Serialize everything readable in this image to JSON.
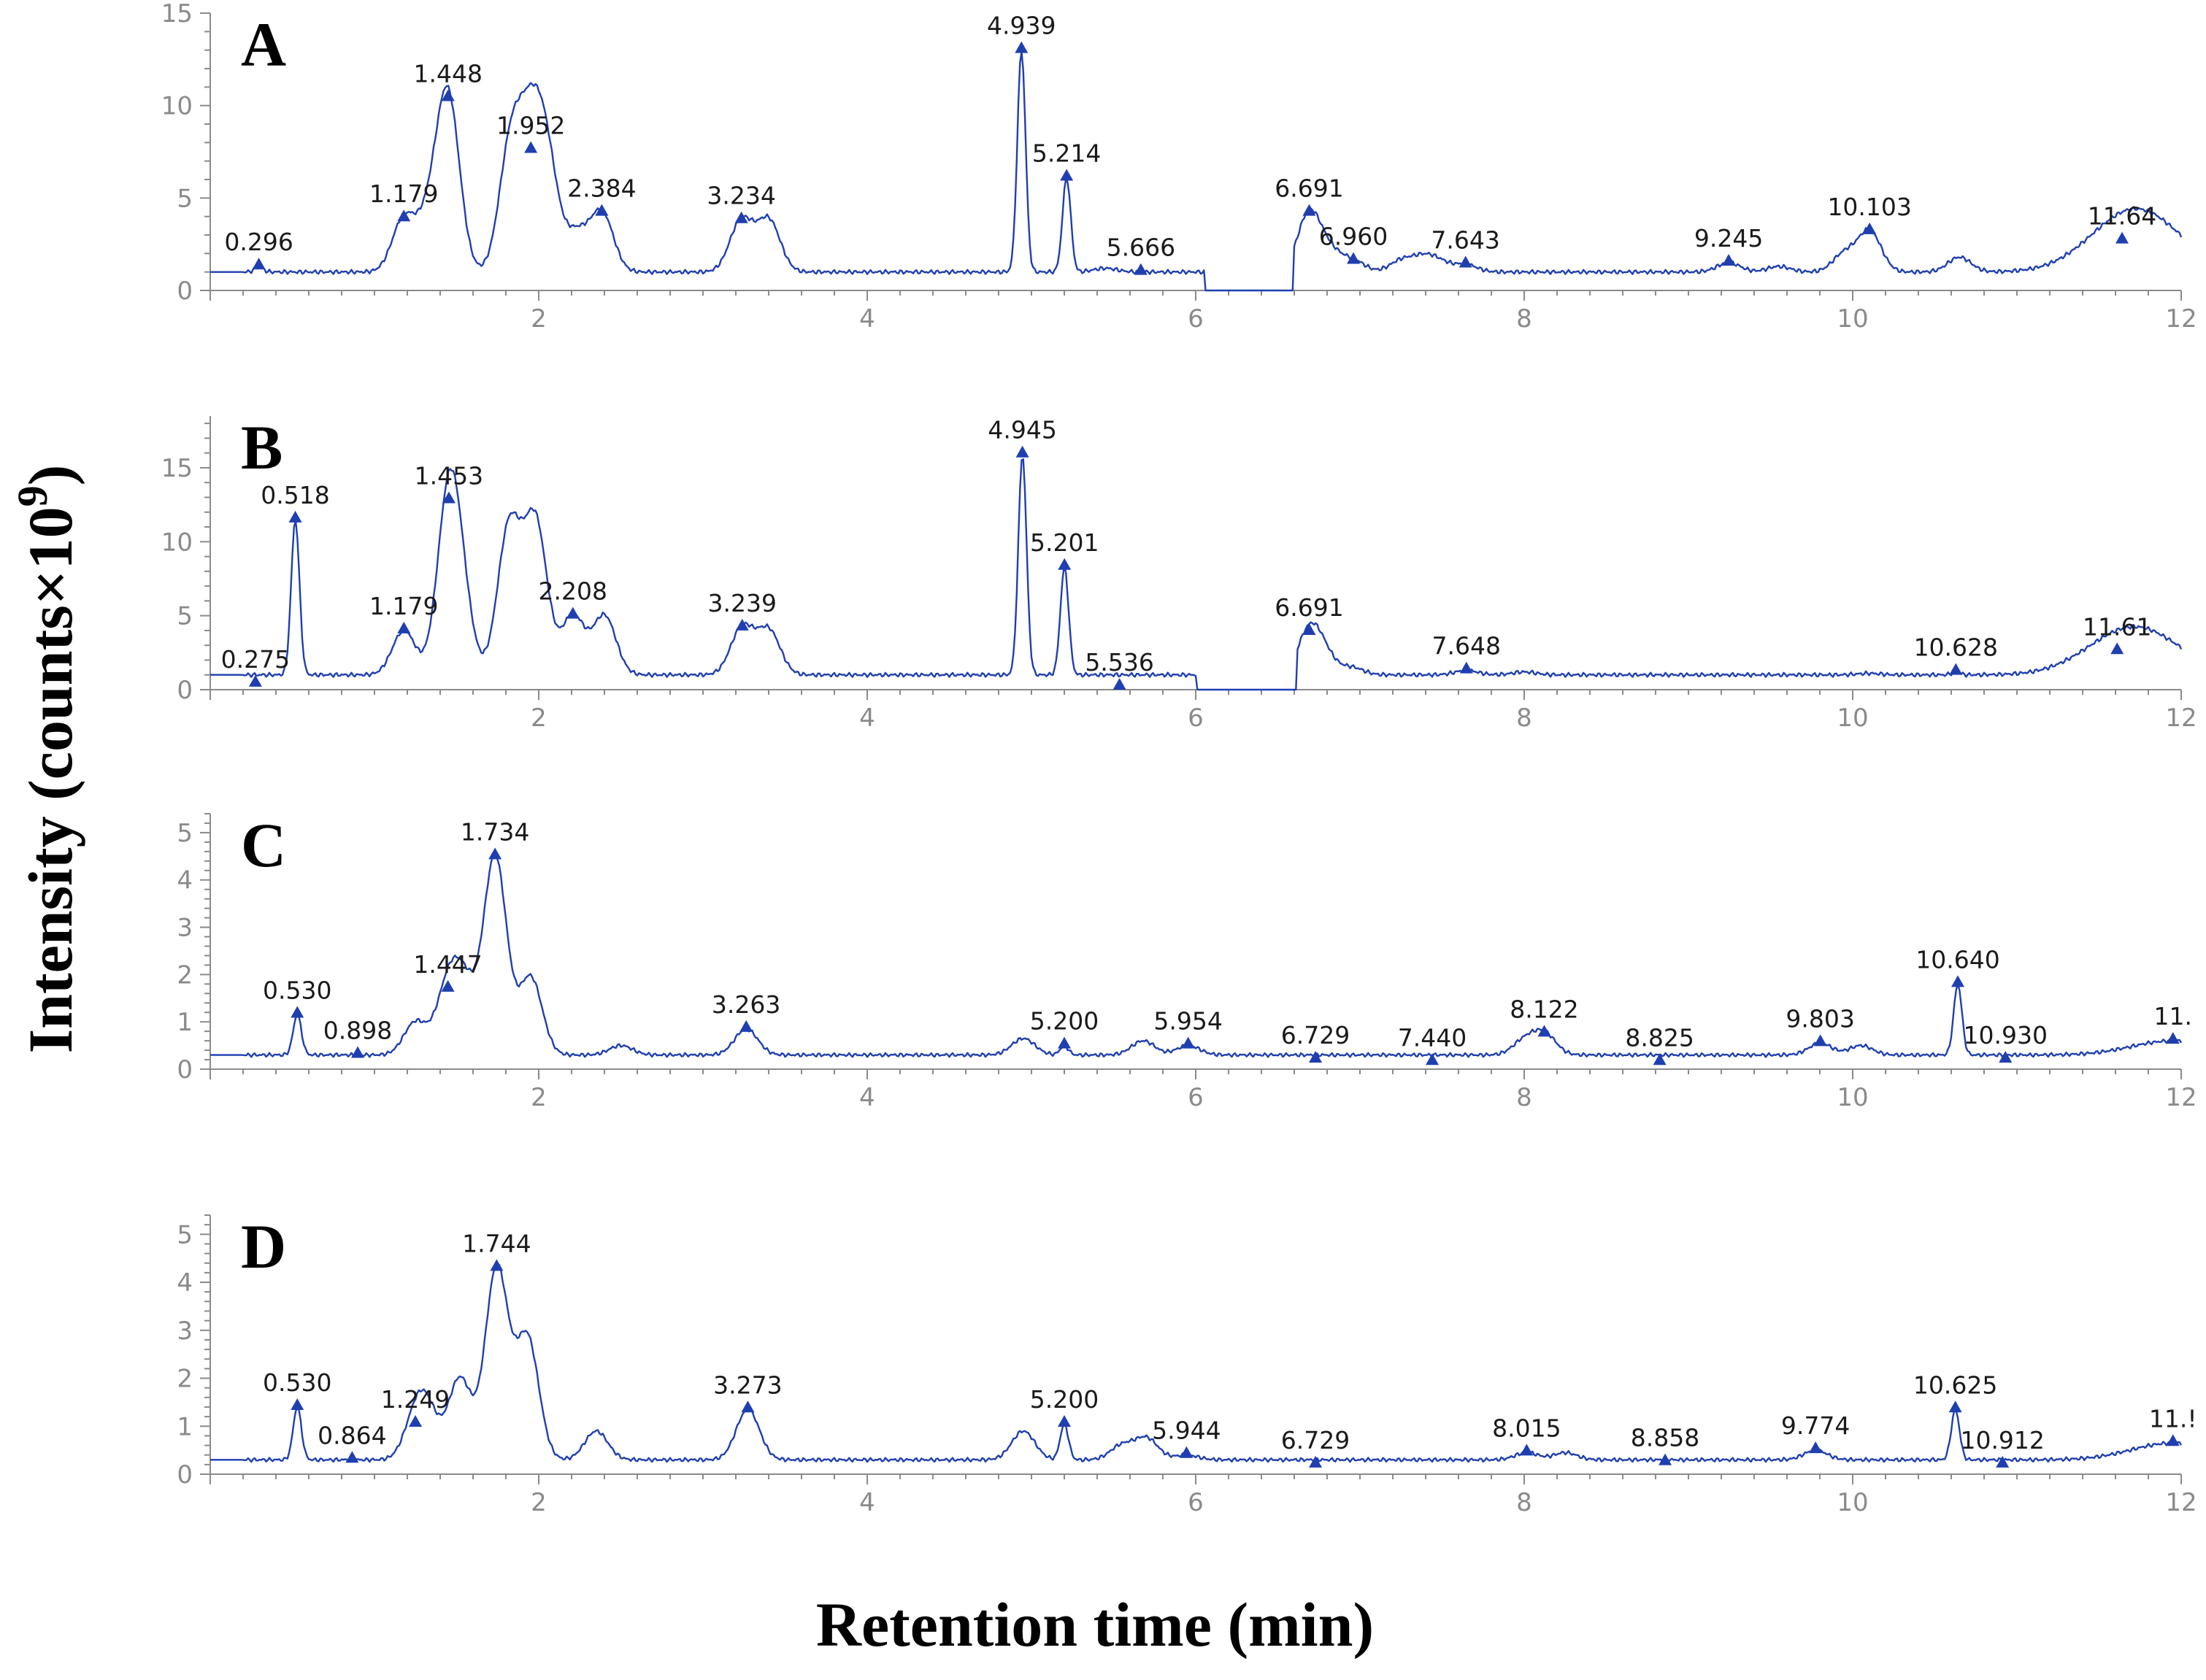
{
  "figure": {
    "ylabel": "Intensity (counts×10",
    "ylabel_exp": "9",
    "ylabel_close": ")",
    "xlabel": "Retention time (min)",
    "trace_color": "#1f3fb0"
  },
  "chart_data": [
    {
      "type": "line",
      "panel": "A",
      "xlim": [
        0,
        12
      ],
      "ylim": [
        0,
        15
      ],
      "xticks": [
        2,
        4,
        6,
        8,
        10,
        12
      ],
      "yticks": [
        0,
        5,
        10,
        15
      ],
      "baseline": 1.0,
      "peaks": [
        {
          "label": "0.296",
          "x": 0.296,
          "y": 1.3
        },
        {
          "label": "1.179",
          "x": 1.179,
          "y": 3.9
        },
        {
          "label": "1.448",
          "x": 1.448,
          "y": 10.4
        },
        {
          "label": "1.952",
          "x": 1.952,
          "y": 7.6
        },
        {
          "label": "2.384",
          "x": 2.384,
          "y": 4.2
        },
        {
          "label": "3.234",
          "x": 3.234,
          "y": 3.8
        },
        {
          "label": "4.939",
          "x": 4.939,
          "y": 13.0
        },
        {
          "label": "5.214",
          "x": 5.214,
          "y": 6.1
        },
        {
          "label": "5.666",
          "x": 5.666,
          "y": 1.0
        },
        {
          "label": "6.691",
          "x": 6.691,
          "y": 4.2
        },
        {
          "label": "6.960",
          "x": 6.96,
          "y": 1.6
        },
        {
          "label": "7.643",
          "x": 7.643,
          "y": 1.4
        },
        {
          "label": "9.245",
          "x": 9.245,
          "y": 1.5
        },
        {
          "label": "10.103",
          "x": 10.103,
          "y": 3.2
        },
        {
          "label": "11.64",
          "x": 11.64,
          "y": 2.7
        }
      ],
      "minor_peaks": [
        [
          1.33,
          3.5
        ],
        [
          1.83,
          7.8
        ],
        [
          2.05,
          6.5
        ],
        [
          2.23,
          3.0
        ],
        [
          3.4,
          3.8
        ],
        [
          5.45,
          1.2
        ],
        [
          6.82,
          2.0
        ],
        [
          7.25,
          1.6
        ],
        [
          7.38,
          1.7
        ],
        [
          7.48,
          1.5
        ],
        [
          9.55,
          1.3
        ],
        [
          9.95,
          2.0
        ],
        [
          10.65,
          1.8
        ],
        [
          11.8,
          2.9
        ]
      ],
      "dip": [
        6.05,
        6.6,
        0.0
      ]
    },
    {
      "type": "line",
      "panel": "B",
      "xlim": [
        0,
        12
      ],
      "ylim": [
        0,
        18.5
      ],
      "xticks": [
        2,
        4,
        6,
        8,
        10,
        12
      ],
      "yticks": [
        0,
        5,
        10,
        15
      ],
      "baseline": 1.0,
      "peaks": [
        {
          "label": "0.275",
          "x": 0.275,
          "y": 0.4
        },
        {
          "label": "0.518",
          "x": 0.518,
          "y": 11.5
        },
        {
          "label": "1.179",
          "x": 1.179,
          "y": 4.0
        },
        {
          "label": "1.453",
          "x": 1.453,
          "y": 12.8
        },
        {
          "label": "2.208",
          "x": 2.208,
          "y": 5.0
        },
        {
          "label": "3.239",
          "x": 3.239,
          "y": 4.2
        },
        {
          "label": "4.945",
          "x": 4.945,
          "y": 15.9
        },
        {
          "label": "5.201",
          "x": 5.201,
          "y": 8.3
        },
        {
          "label": "5.536",
          "x": 5.536,
          "y": 0.2
        },
        {
          "label": "6.691",
          "x": 6.691,
          "y": 3.9
        },
        {
          "label": "7.648",
          "x": 7.648,
          "y": 1.3
        },
        {
          "label": "10.628",
          "x": 10.628,
          "y": 1.2
        },
        {
          "label": "11.61",
          "x": 11.61,
          "y": 2.6
        }
      ],
      "minor_peaks": [
        [
          1.53,
          4.6
        ],
        [
          1.82,
          11.0
        ],
        [
          1.98,
          11.3
        ],
        [
          2.4,
          5.0
        ],
        [
          3.4,
          4.0
        ],
        [
          6.78,
          2.2
        ],
        [
          6.95,
          1.5
        ],
        [
          8.0,
          1.2
        ],
        [
          10.1,
          1.1
        ],
        [
          11.8,
          2.9
        ]
      ],
      "dip": [
        6.0,
        6.62,
        0.0
      ]
    },
    {
      "type": "line",
      "panel": "C",
      "xlim": [
        0,
        12
      ],
      "ylim": [
        0,
        5.4
      ],
      "xticks": [
        2,
        4,
        6,
        8,
        10,
        12
      ],
      "yticks": [
        0,
        1,
        2,
        3,
        4,
        5
      ],
      "baseline": 0.3,
      "peaks": [
        {
          "label": "0.530",
          "x": 0.53,
          "y": 1.15
        },
        {
          "label": "0.898",
          "x": 0.898,
          "y": 0.3
        },
        {
          "label": "1.447",
          "x": 1.447,
          "y": 1.7
        },
        {
          "label": "1.734",
          "x": 1.734,
          "y": 4.5
        },
        {
          "label": "3.263",
          "x": 3.263,
          "y": 0.85
        },
        {
          "label": "5.200",
          "x": 5.2,
          "y": 0.5
        },
        {
          "label": "5.954",
          "x": 5.954,
          "y": 0.5
        },
        {
          "label": "6.729",
          "x": 6.729,
          "y": 0.2
        },
        {
          "label": "7.440",
          "x": 7.44,
          "y": 0.15
        },
        {
          "label": "8.122",
          "x": 8.122,
          "y": 0.75
        },
        {
          "label": "8.825",
          "x": 8.825,
          "y": 0.15
        },
        {
          "label": "9.803",
          "x": 9.803,
          "y": 0.55
        },
        {
          "label": "10.640",
          "x": 10.64,
          "y": 1.8
        },
        {
          "label": "10.930",
          "x": 10.93,
          "y": 0.2
        },
        {
          "label": "11.",
          "x": 11.95,
          "y": 0.6
        }
      ],
      "minor_peaks": [
        [
          1.25,
          1.0
        ],
        [
          1.55,
          1.6
        ],
        [
          1.95,
          1.95
        ],
        [
          2.5,
          0.5
        ],
        [
          4.95,
          0.65
        ],
        [
          5.68,
          0.6
        ],
        [
          8.0,
          0.6
        ],
        [
          10.05,
          0.5
        ]
      ],
      "dip": null
    },
    {
      "type": "line",
      "panel": "D",
      "xlim": [
        0,
        12
      ],
      "ylim": [
        0,
        5.4
      ],
      "xticks": [
        2,
        4,
        6,
        8,
        10,
        12
      ],
      "yticks": [
        0,
        1,
        2,
        3,
        4,
        5
      ],
      "baseline": 0.3,
      "peaks": [
        {
          "label": "0.530",
          "x": 0.53,
          "y": 1.4
        },
        {
          "label": "0.864",
          "x": 0.864,
          "y": 0.3
        },
        {
          "label": "1.249",
          "x": 1.249,
          "y": 1.05
        },
        {
          "label": "1.744",
          "x": 1.744,
          "y": 4.3
        },
        {
          "label": "3.273",
          "x": 3.273,
          "y": 1.35
        },
        {
          "label": "5.200",
          "x": 5.2,
          "y": 1.05
        },
        {
          "label": "5.944",
          "x": 5.944,
          "y": 0.4
        },
        {
          "label": "6.729",
          "x": 6.729,
          "y": 0.2
        },
        {
          "label": "8.015",
          "x": 8.015,
          "y": 0.45
        },
        {
          "label": "8.858",
          "x": 8.858,
          "y": 0.25
        },
        {
          "label": "9.774",
          "x": 9.774,
          "y": 0.5
        },
        {
          "label": "10.625",
          "x": 10.625,
          "y": 1.35
        },
        {
          "label": "10.912",
          "x": 10.912,
          "y": 0.2
        },
        {
          "label": "11.!",
          "x": 11.95,
          "y": 0.65
        }
      ],
      "minor_peaks": [
        [
          1.32,
          1.2
        ],
        [
          1.52,
          2.0
        ],
        [
          1.93,
          2.85
        ],
        [
          2.35,
          0.9
        ],
        [
          4.95,
          0.9
        ],
        [
          5.55,
          0.6
        ],
        [
          5.7,
          0.75
        ],
        [
          8.25,
          0.45
        ]
      ],
      "dip": null
    }
  ]
}
